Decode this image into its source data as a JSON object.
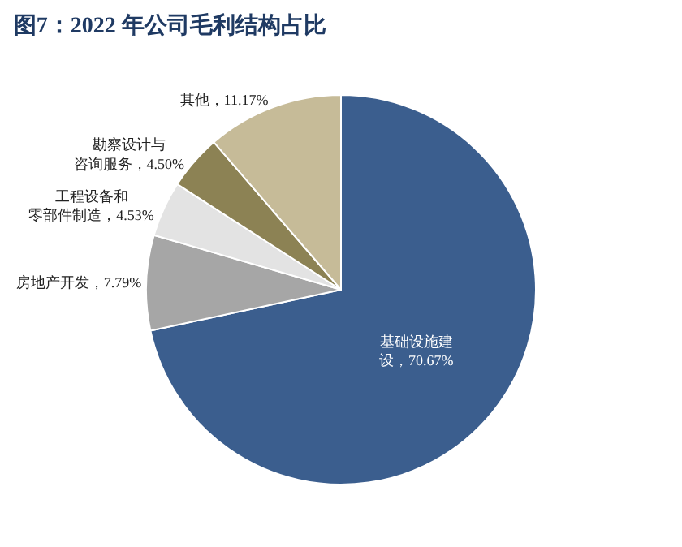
{
  "chart_data": {
    "type": "pie",
    "title": "图7：2022 年公司毛利结构占比",
    "categories": [
      "基础设施建设",
      "房地产开发",
      "工程设备和零部件制造",
      "勘察设计与咨询服务",
      "其他"
    ],
    "values": [
      70.67,
      7.79,
      4.53,
      4.5,
      11.17
    ],
    "value_labels": [
      "70.67%",
      "7.79%",
      "4.53%",
      "4.50%",
      "11.17%"
    ],
    "colors": [
      "#3b5e8e",
      "#a6a6a6",
      "#e3e3e3",
      "#8c8254",
      "#c6bb98"
    ],
    "legend": false
  }
}
